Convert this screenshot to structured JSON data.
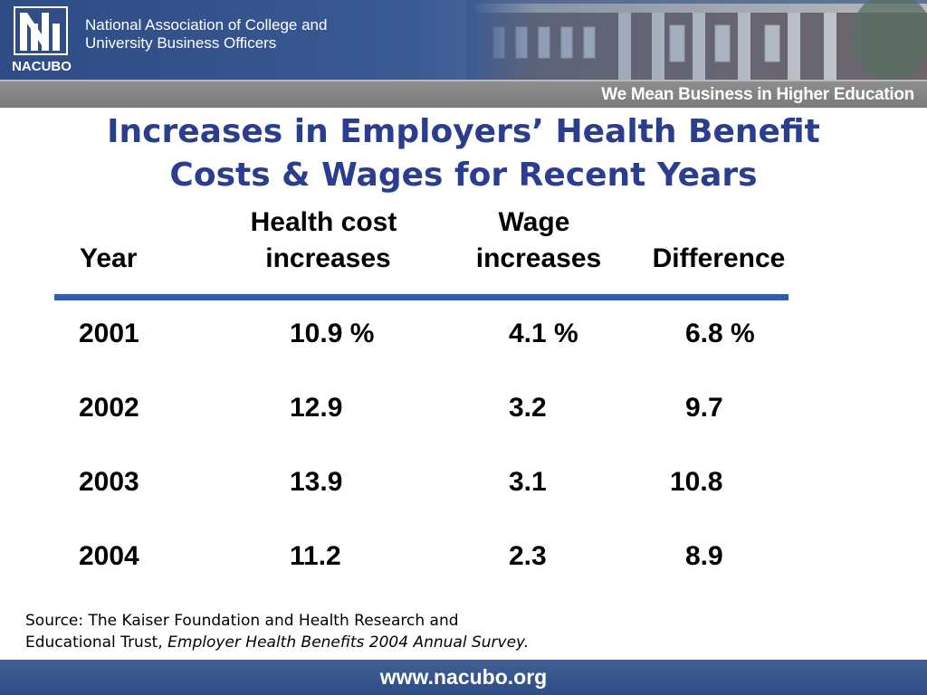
{
  "header": {
    "logo_text": "NACUBO",
    "org_name_line1": "National Association of College and",
    "org_name_line2": "University Business Officers",
    "tagline": "We Mean Business in Higher Education"
  },
  "title": {
    "line1": "Increases in Employers’ Health Benefit",
    "line2": "Costs & Wages for Recent Years"
  },
  "table": {
    "headers": {
      "year": "Year",
      "health_line1": "Health cost",
      "health_line2": "increases",
      "wage_line1": "Wage",
      "wage_line2": "increases",
      "difference": "Difference"
    },
    "rows": [
      {
        "year": "2001",
        "health": "10.9 %",
        "wage": "4.1 %",
        "difference": "6.8 %"
      },
      {
        "year": "2002",
        "health": "12.9",
        "wage": "3.2",
        "difference": "9.7"
      },
      {
        "year": "2003",
        "health": "13.9",
        "wage": "3.1",
        "difference": "10.8"
      },
      {
        "year": "2004",
        "health": "11.2",
        "wage": "2.3",
        "difference": "8.9"
      }
    ]
  },
  "source": {
    "prefix": "Source: The Kaiser Foundation and Health Research and",
    "line2_plain": "Educational Trust, ",
    "line2_italic": "Employer Health Benefits 2004 Annual Survey."
  },
  "footer": {
    "url": "www.nacubo.org"
  },
  "colors": {
    "title": "#2b3d8f",
    "rule": "#2f5db2",
    "banner": "#2e4c86",
    "tagline_bar": "#808080"
  }
}
